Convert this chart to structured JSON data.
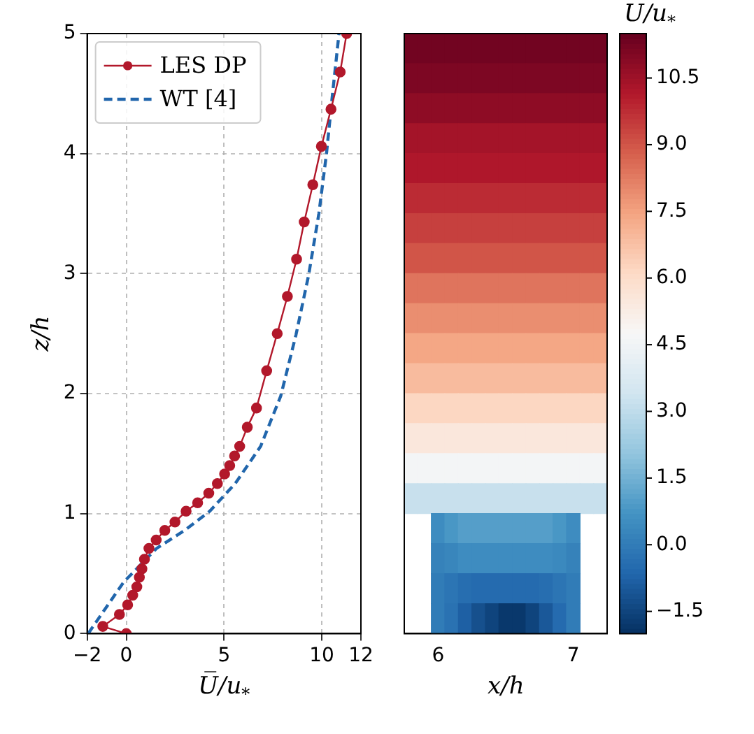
{
  "chart_data": [
    {
      "type": "line",
      "xlabel": "U̅/u$_{*}$",
      "ylabel": "z/h",
      "xlim": [
        -2,
        12
      ],
      "xticks": [
        -2,
        0,
        5,
        10,
        12
      ],
      "ylim": [
        0,
        5
      ],
      "yticks": [
        0,
        1,
        2,
        3,
        4,
        5
      ],
      "grid": true,
      "legend": "top left",
      "series": [
        {
          "name": "LES DP",
          "color": "#b2182b",
          "marker": "circle",
          "line_style": "solid",
          "x": [
            0,
            -1.2,
            -0.35,
            0.07,
            0.33,
            0.54,
            0.67,
            0.8,
            0.93,
            1.16,
            1.53,
            1.97,
            2.49,
            3.06,
            3.65,
            4.22,
            4.66,
            5.03,
            5.29,
            5.54,
            5.8,
            6.19,
            6.66,
            7.18,
            7.72,
            8.24,
            8.71,
            9.1,
            9.54,
            9.98,
            10.47,
            10.94,
            11.27
          ],
          "values": [
            0,
            0.06,
            0.16,
            0.24,
            0.32,
            0.39,
            0.47,
            0.54,
            0.62,
            0.71,
            0.78,
            0.86,
            0.93,
            1.02,
            1.09,
            1.17,
            1.25,
            1.33,
            1.4,
            1.48,
            1.56,
            1.72,
            1.88,
            2.19,
            2.5,
            2.81,
            3.12,
            3.43,
            3.74,
            4.06,
            4.37,
            4.68,
            5
          ]
        },
        {
          "name": "WT [4]",
          "color": "#2166ac",
          "marker": "none",
          "line_style": "dashed",
          "x": [
            -1.95,
            -0.13,
            1.55,
            2.98,
            4.27,
            5.57,
            6.87,
            7.9,
            8.68,
            9.33,
            9.85,
            10.24,
            10.55,
            10.88
          ],
          "values": [
            0,
            0.43,
            0.71,
            0.86,
            1.02,
            1.25,
            1.56,
            1.98,
            2.49,
            2.99,
            3.5,
            4,
            4.5,
            5
          ]
        }
      ]
    },
    {
      "type": "heatmap",
      "xlabel": "x/h",
      "clabel": "U̅/u$_{*}$",
      "tick_labels": "x",
      "categories": [
        null,
        null,
        "6",
        null,
        null,
        null,
        null,
        null,
        null,
        null,
        null,
        null,
        "7",
        null,
        null
      ],
      "y_categories": [
        null,
        null,
        null,
        null,
        null,
        null,
        null,
        null,
        null,
        null,
        null,
        null,
        null,
        null,
        null,
        null,
        null,
        null,
        null,
        null
      ],
      "clim": [
        -2,
        11.5
      ],
      "cticks": [
        {
          "value": -1.5,
          "label": "−1.5"
        },
        {
          "value": 0,
          "label": "0.0"
        },
        {
          "value": 1.5,
          "label": "1.5"
        },
        {
          "value": 3,
          "label": "3.0"
        },
        {
          "value": 4.5,
          "label": "4.5"
        },
        {
          "value": 6,
          "label": "6.0"
        },
        {
          "value": 7.5,
          "label": "7.5"
        },
        {
          "value": 9,
          "label": "9.0"
        },
        {
          "value": 10.5,
          "label": "10.5"
        }
      ],
      "cells": [
        [
          11.3,
          11.3,
          11.3,
          11.3,
          11.3,
          11.3,
          11.3,
          11.3,
          11.3,
          11.3,
          11.3,
          11.3,
          11.3,
          11.3,
          11.3
        ],
        [
          11.1,
          11.1,
          11.1,
          11.1,
          11.1,
          11.1,
          11.1,
          11.1,
          11.1,
          11.1,
          11.1,
          11.1,
          11.1,
          11.1,
          11.1
        ],
        [
          10.8,
          10.8,
          10.8,
          10.8,
          10.8,
          10.8,
          10.8,
          10.8,
          10.8,
          10.8,
          10.8,
          10.8,
          10.8,
          10.8,
          10.8
        ],
        [
          10.4,
          10.4,
          10.4,
          10.4,
          10.4,
          10.4,
          10.4,
          10.4,
          10.4,
          10.4,
          10.4,
          10.4,
          10.4,
          10.4,
          10.4
        ],
        [
          10.2,
          10.2,
          10.2,
          10.2,
          10.2,
          10.2,
          10.2,
          10.2,
          10.2,
          10.2,
          10.2,
          10.2,
          10.2,
          10.2,
          10.2
        ],
        [
          9.8,
          9.8,
          9.8,
          9.8,
          9.8,
          9.8,
          9.8,
          9.8,
          9.8,
          9.8,
          9.8,
          9.8,
          9.8,
          9.8,
          9.8
        ],
        [
          9.4,
          9.4,
          9.4,
          9.4,
          9.4,
          9.4,
          9.4,
          9.4,
          9.4,
          9.4,
          9.4,
          9.4,
          9.4,
          9.4,
          9.4
        ],
        [
          9,
          9,
          9,
          9,
          9,
          9,
          9,
          9,
          9,
          9,
          9,
          9,
          9,
          9,
          9
        ],
        [
          8.4,
          8.4,
          8.4,
          8.4,
          8.4,
          8.4,
          8.4,
          8.4,
          8.4,
          8.4,
          8.4,
          8.4,
          8.4,
          8.4,
          8.4
        ],
        [
          7.9,
          7.9,
          7.9,
          7.9,
          7.9,
          7.9,
          7.9,
          7.9,
          7.9,
          7.9,
          7.9,
          7.9,
          7.9,
          7.9,
          7.9
        ],
        [
          7.4,
          7.4,
          7.4,
          7.4,
          7.4,
          7.4,
          7.4,
          7.4,
          7.4,
          7.4,
          7.4,
          7.4,
          7.4,
          7.4,
          7.4
        ],
        [
          6.9,
          6.9,
          6.9,
          6.9,
          6.9,
          6.9,
          6.9,
          6.9,
          6.9,
          6.9,
          6.9,
          6.9,
          6.9,
          6.9,
          6.9
        ],
        [
          6.2,
          6.2,
          6.2,
          6.2,
          6.2,
          6.2,
          6.2,
          6.2,
          6.2,
          6.2,
          6.2,
          6.2,
          6.2,
          6.2,
          6.2
        ],
        [
          5.5,
          5.5,
          5.5,
          5.5,
          5.5,
          5.5,
          5.5,
          5.5,
          5.5,
          5.5,
          5.5,
          5.5,
          5.5,
          5.5,
          5.5
        ],
        [
          4.6,
          4.6,
          4.6,
          4.6,
          4.6,
          4.6,
          4.6,
          4.6,
          4.6,
          4.6,
          4.6,
          4.6,
          4.6,
          4.6,
          4.6
        ],
        [
          3.2,
          3.2,
          3.2,
          3.2,
          3.2,
          3.2,
          3.2,
          3.2,
          3.2,
          3.2,
          3.2,
          3.2,
          3.2,
          3.2,
          3.2
        ],
        [
          null,
          null,
          0.5,
          0.8,
          1,
          1,
          1,
          1,
          1,
          1,
          1,
          0.8,
          0.5,
          null,
          null
        ],
        [
          null,
          null,
          0.2,
          0.3,
          0.5,
          0.5,
          0.5,
          0.5,
          0.5,
          0.5,
          0.5,
          0.4,
          0.2,
          null,
          null
        ],
        [
          null,
          null,
          0,
          -0.2,
          -0.4,
          -0.5,
          -0.5,
          -0.5,
          -0.5,
          -0.5,
          -0.4,
          -0.2,
          0,
          null,
          null
        ],
        [
          null,
          null,
          0,
          -0.3,
          -0.8,
          -1.2,
          -1.5,
          -1.8,
          -1.8,
          -1.5,
          -1,
          -0.5,
          0,
          null,
          null
        ]
      ]
    }
  ]
}
